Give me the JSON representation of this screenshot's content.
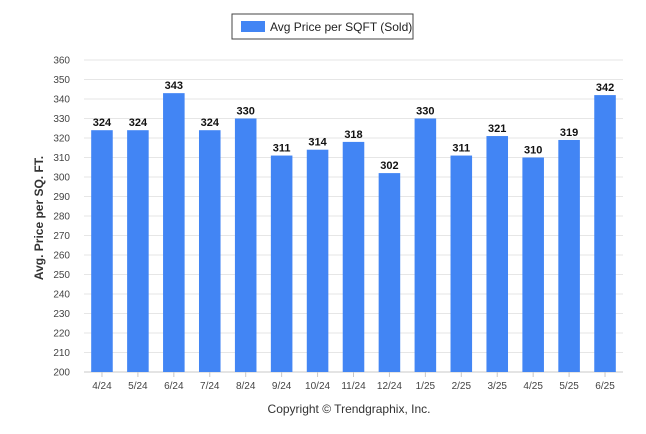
{
  "chart_data": {
    "type": "bar",
    "title": "",
    "xlabel": "",
    "ylabel": "Avg. Price per SQ. FT.",
    "legend": "top-center",
    "grid": true,
    "ylim": [
      200,
      360
    ],
    "yticks": [
      200,
      210,
      220,
      230,
      240,
      250,
      260,
      270,
      280,
      290,
      300,
      310,
      320,
      330,
      340,
      350,
      360
    ],
    "categories": [
      "4/24",
      "5/24",
      "6/24",
      "7/24",
      "8/24",
      "9/24",
      "10/24",
      "11/24",
      "12/24",
      "1/25",
      "2/25",
      "3/25",
      "4/25",
      "5/25",
      "6/25"
    ],
    "series": [
      {
        "name": "Avg Price per SQFT (Sold)",
        "color": "#4285f4",
        "values": [
          324,
          324,
          343,
          324,
          330,
          311,
          314,
          318,
          302,
          330,
          311,
          321,
          310,
          319,
          342
        ]
      }
    ],
    "credit": "Copyright © Trendgraphix, Inc."
  }
}
